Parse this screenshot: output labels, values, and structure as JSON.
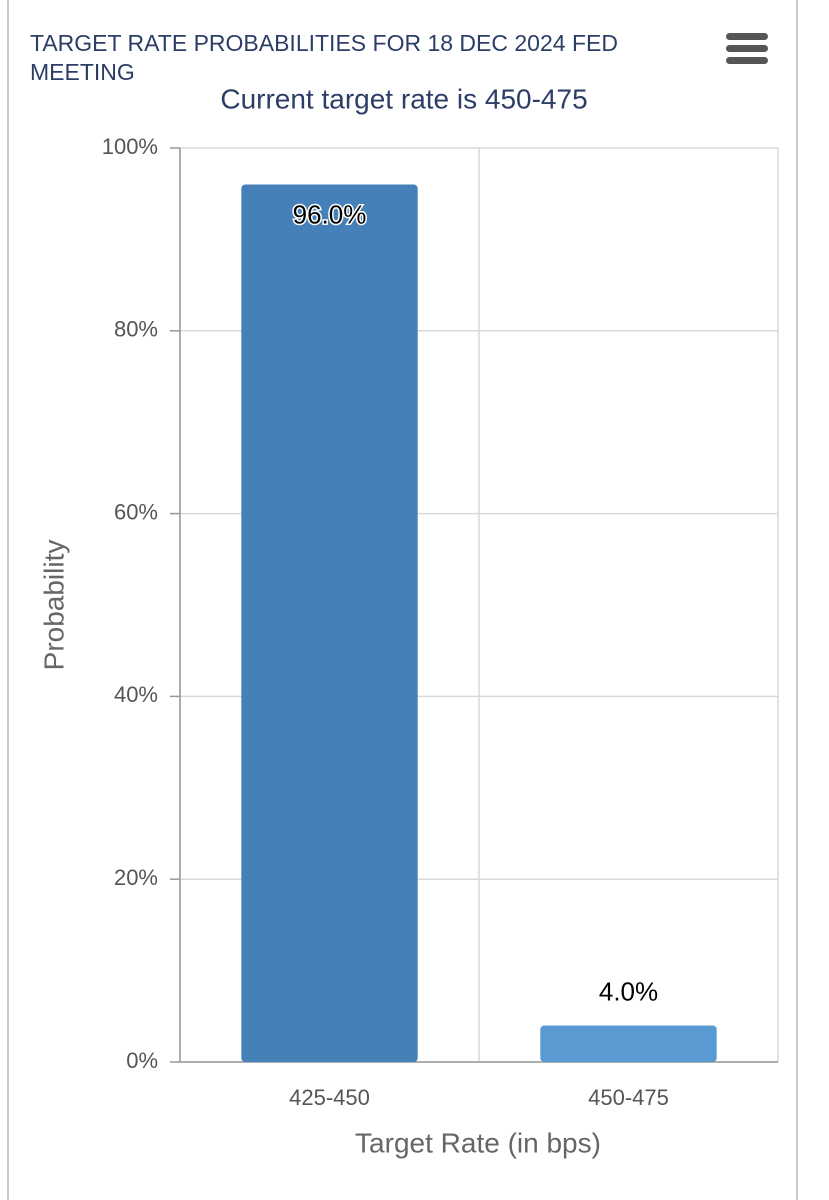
{
  "chart_data": {
    "type": "bar",
    "title": [
      "TARGET RATE PROBABILITIES FOR 18 DEC 2024 FED",
      "MEETING"
    ],
    "subtitle": "Current target rate is 450-475",
    "y_label": "Probability",
    "x_label": "Target Rate (in bps)",
    "categories": [
      "425-450",
      "450-475"
    ],
    "values": [
      96,
      4
    ],
    "value_labels": [
      "96.0%",
      "4.0%"
    ],
    "colors": [
      "#4581b8",
      "#5a9ad3"
    ],
    "ylim": [
      0,
      100
    ],
    "yticks": [
      {
        "value": 0,
        "label": "0%"
      },
      {
        "value": 20,
        "label": "20%"
      },
      {
        "value": 40,
        "label": "40%"
      },
      {
        "value": 60,
        "label": "60%"
      },
      {
        "value": 80,
        "label": "80%"
      },
      {
        "value": 100,
        "label": "100%"
      }
    ],
    "grid": true
  }
}
